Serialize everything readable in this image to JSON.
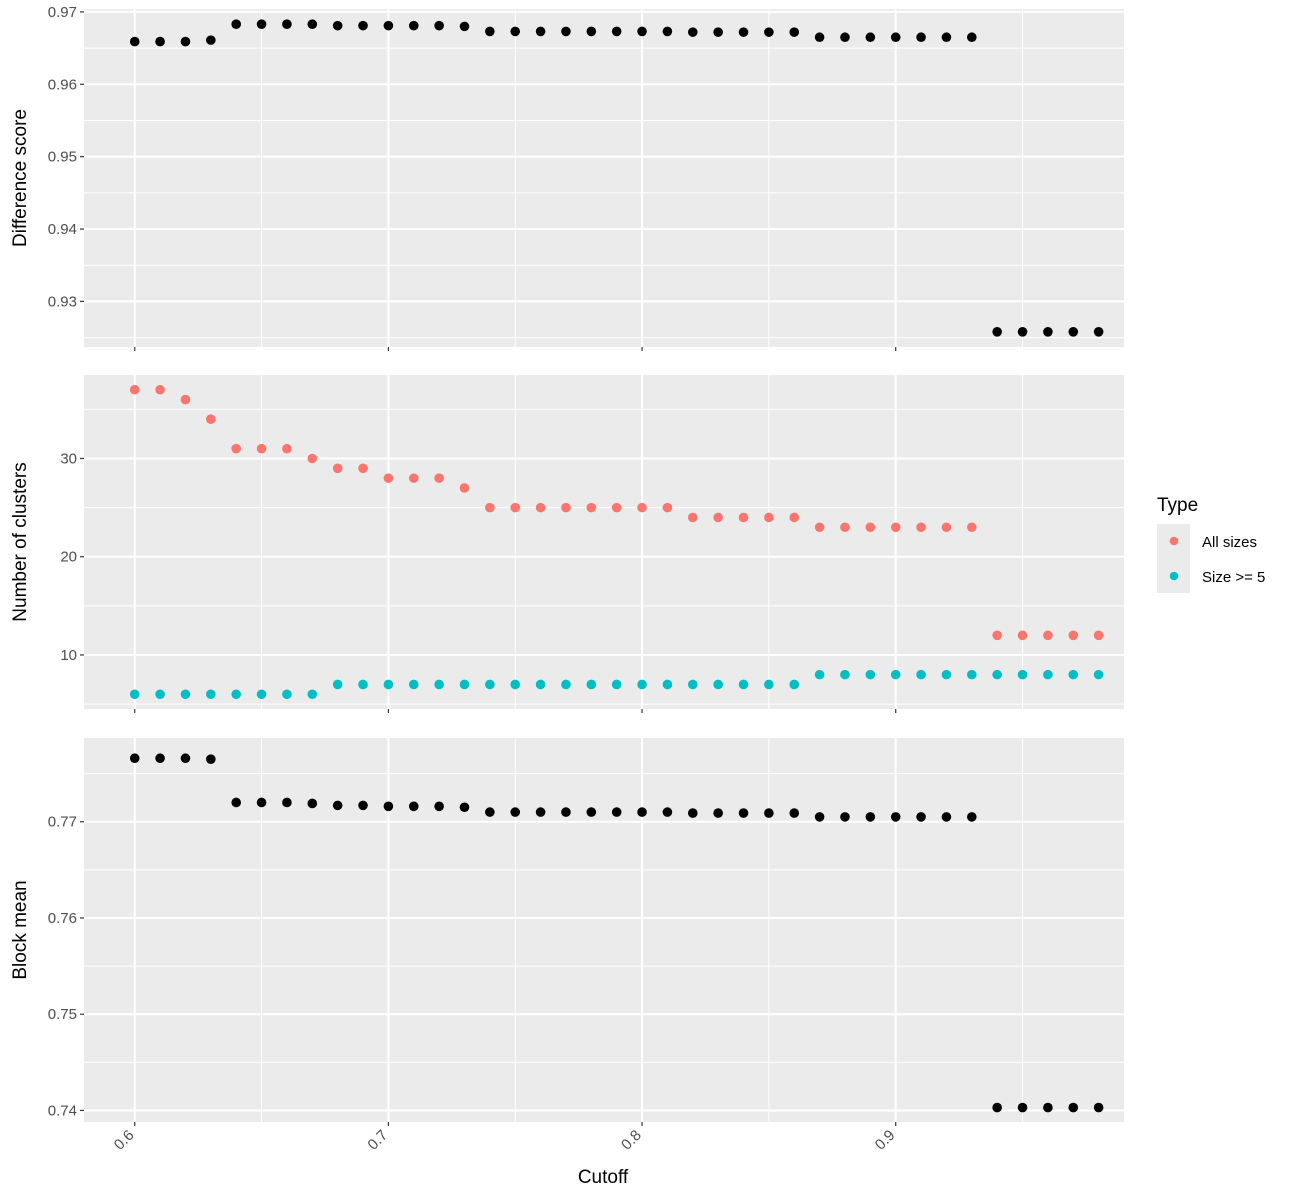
{
  "chart_data": [
    {
      "type": "scatter",
      "ylabel": "Difference score",
      "xlabel": "",
      "xlim": [
        0.58,
        0.99
      ],
      "ylim": [
        0.9237,
        0.9704
      ],
      "yticks": [
        0.93,
        0.94,
        0.95,
        0.96,
        0.97
      ],
      "ytick_labels": [
        "0.93",
        "0.94",
        "0.95",
        "0.96",
        "0.97"
      ],
      "grid": true,
      "series": [
        {
          "color": "#000000",
          "x": [
            0.6,
            0.61,
            0.62,
            0.63,
            0.64,
            0.65,
            0.66,
            0.67,
            0.68,
            0.69,
            0.7,
            0.71,
            0.72,
            0.73,
            0.74,
            0.75,
            0.76,
            0.77,
            0.78,
            0.79,
            0.8,
            0.81,
            0.82,
            0.83,
            0.84,
            0.85,
            0.86,
            0.87,
            0.88,
            0.89,
            0.9,
            0.91,
            0.92,
            0.93,
            0.94,
            0.95,
            0.96,
            0.97,
            0.98
          ],
          "y": [
            0.9659,
            0.9659,
            0.9659,
            0.9661,
            0.9683,
            0.9683,
            0.9683,
            0.9683,
            0.9681,
            0.9681,
            0.9681,
            0.9681,
            0.9681,
            0.968,
            0.9673,
            0.9673,
            0.9673,
            0.9673,
            0.9673,
            0.9673,
            0.9673,
            0.9673,
            0.9672,
            0.9672,
            0.9672,
            0.9672,
            0.9672,
            0.9665,
            0.9665,
            0.9665,
            0.9665,
            0.9665,
            0.9665,
            0.9665,
            0.9258,
            0.9258,
            0.9258,
            0.9258,
            0.9258
          ]
        }
      ]
    },
    {
      "type": "scatter",
      "ylabel": "Number of clusters",
      "xlabel": "",
      "xlim": [
        0.58,
        0.99
      ],
      "ylim": [
        4.5,
        38.5
      ],
      "yticks": [
        10,
        20,
        30
      ],
      "ytick_labels": [
        "10",
        "20",
        "30"
      ],
      "grid": true,
      "legend": {
        "title": "Type",
        "position": "right"
      },
      "series": [
        {
          "name": "All sizes",
          "color": "#F8766D",
          "x": [
            0.6,
            0.61,
            0.62,
            0.63,
            0.64,
            0.65,
            0.66,
            0.67,
            0.68,
            0.69,
            0.7,
            0.71,
            0.72,
            0.73,
            0.74,
            0.75,
            0.76,
            0.77,
            0.78,
            0.79,
            0.8,
            0.81,
            0.82,
            0.83,
            0.84,
            0.85,
            0.86,
            0.87,
            0.88,
            0.89,
            0.9,
            0.91,
            0.92,
            0.93,
            0.94,
            0.95,
            0.96,
            0.97,
            0.98
          ],
          "y": [
            37,
            37,
            36,
            34,
            31,
            31,
            31,
            30,
            29,
            29,
            28,
            28,
            28,
            27,
            25,
            25,
            25,
            25,
            25,
            25,
            25,
            25,
            24,
            24,
            24,
            24,
            24,
            23,
            23,
            23,
            23,
            23,
            23,
            23,
            12,
            12,
            12,
            12,
            12
          ]
        },
        {
          "name": "Size >= 5",
          "color": "#00BFC4",
          "x": [
            0.6,
            0.61,
            0.62,
            0.63,
            0.64,
            0.65,
            0.66,
            0.67,
            0.68,
            0.69,
            0.7,
            0.71,
            0.72,
            0.73,
            0.74,
            0.75,
            0.76,
            0.77,
            0.78,
            0.79,
            0.8,
            0.81,
            0.82,
            0.83,
            0.84,
            0.85,
            0.86,
            0.87,
            0.88,
            0.89,
            0.9,
            0.91,
            0.92,
            0.93,
            0.94,
            0.95,
            0.96,
            0.97,
            0.98
          ],
          "y": [
            6,
            6,
            6,
            6,
            6,
            6,
            6,
            6,
            7,
            7,
            7,
            7,
            7,
            7,
            7,
            7,
            7,
            7,
            7,
            7,
            7,
            7,
            7,
            7,
            7,
            7,
            7,
            8,
            8,
            8,
            8,
            8,
            8,
            8,
            8,
            8,
            8,
            8,
            8
          ]
        }
      ]
    },
    {
      "type": "scatter",
      "ylabel": "Block mean",
      "xlabel": "Cutoff",
      "xlim": [
        0.58,
        0.99
      ],
      "xticks": [
        0.6,
        0.7,
        0.8,
        0.9
      ],
      "xtick_labels": [
        "0.6",
        "0.7",
        "0.8",
        "0.9"
      ],
      "ylim": [
        0.7388,
        0.7787
      ],
      "yticks": [
        0.74,
        0.75,
        0.76,
        0.77
      ],
      "ytick_labels": [
        "0.74",
        "0.75",
        "0.76",
        "0.77"
      ],
      "grid": true,
      "series": [
        {
          "color": "#000000",
          "x": [
            0.6,
            0.61,
            0.62,
            0.63,
            0.64,
            0.65,
            0.66,
            0.67,
            0.68,
            0.69,
            0.7,
            0.71,
            0.72,
            0.73,
            0.74,
            0.75,
            0.76,
            0.77,
            0.78,
            0.79,
            0.8,
            0.81,
            0.82,
            0.83,
            0.84,
            0.85,
            0.86,
            0.87,
            0.88,
            0.89,
            0.9,
            0.91,
            0.92,
            0.93,
            0.94,
            0.95,
            0.96,
            0.97,
            0.98
          ],
          "y": [
            0.7766,
            0.7766,
            0.7766,
            0.7765,
            0.772,
            0.772,
            0.772,
            0.7719,
            0.7717,
            0.7717,
            0.7716,
            0.7716,
            0.7716,
            0.7715,
            0.771,
            0.771,
            0.771,
            0.771,
            0.771,
            0.771,
            0.771,
            0.771,
            0.7709,
            0.7709,
            0.7709,
            0.7709,
            0.7709,
            0.7705,
            0.7705,
            0.7705,
            0.7705,
            0.7705,
            0.7705,
            0.7705,
            0.7403,
            0.7403,
            0.7403,
            0.7403,
            0.7403
          ]
        }
      ]
    }
  ]
}
